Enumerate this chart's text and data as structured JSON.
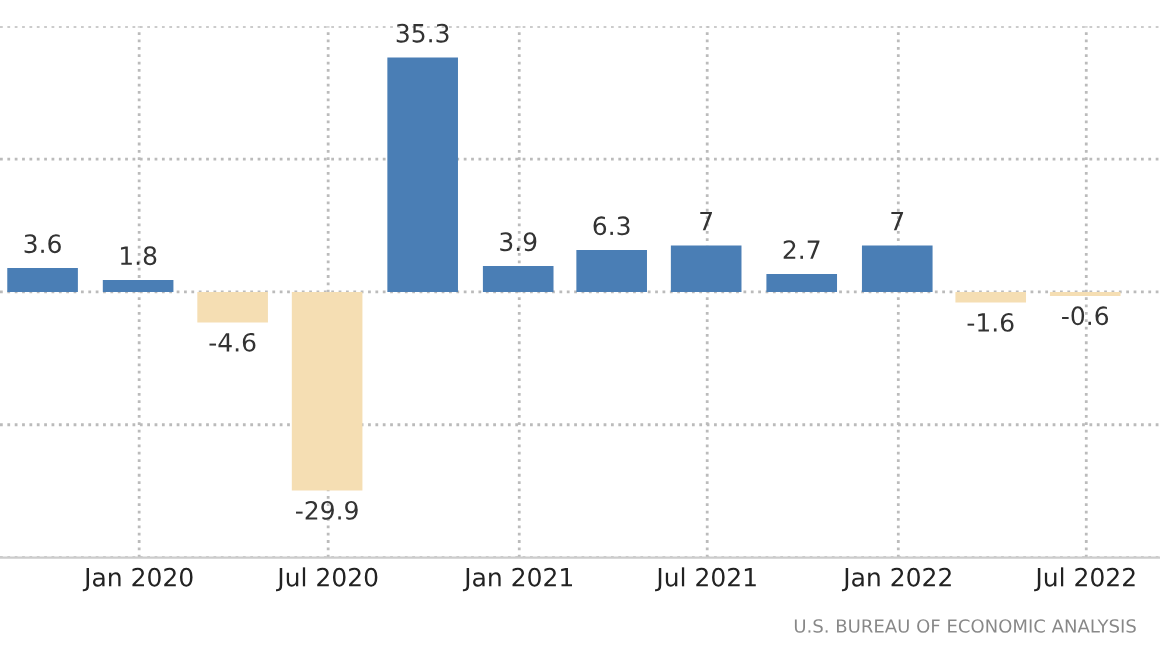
{
  "chart_data": {
    "type": "bar",
    "x": [
      "2019-09-30",
      "2019-12-31",
      "2020-03-31",
      "2020-06-30",
      "2020-09-30",
      "2020-12-31",
      "2021-03-31",
      "2021-06-30",
      "2021-09-30",
      "2021-12-31",
      "2022-03-31",
      "2022-06-30"
    ],
    "values": [
      3.6,
      1.8,
      -4.6,
      -29.9,
      35.3,
      3.9,
      6.3,
      7,
      2.7,
      7,
      -1.6,
      -0.6
    ],
    "colors": [
      "#4a7eb5",
      "#4a7eb5",
      "#f5deb3",
      "#f5deb3",
      "#4a7eb5",
      "#4a7eb5",
      "#4a7eb5",
      "#4a7eb5",
      "#4a7eb5",
      "#4a7eb5",
      "#f5deb3",
      "#f5deb3"
    ],
    "data_labels": true,
    "xlim": [
      "2019-08-20",
      "2022-09-10"
    ],
    "xticks": [
      {
        "value": "2020-01-01",
        "label": "Jan 2020"
      },
      {
        "value": "2020-07-01",
        "label": "Jul 2020"
      },
      {
        "value": "2021-01-01",
        "label": "Jan 2021"
      },
      {
        "value": "2021-07-01",
        "label": "Jul 2021"
      },
      {
        "value": "2022-01-01",
        "label": "Jan 2022"
      },
      {
        "value": "2022-07-01",
        "label": "Jul 2022"
      }
    ],
    "ylim": [
      -40,
      40
    ],
    "yticks": [
      {
        "value": -40,
        "label": null
      },
      {
        "value": -20,
        "label": null
      },
      {
        "value": 0,
        "label": null
      },
      {
        "value": 20,
        "label": null
      },
      {
        "value": 40,
        "label": null
      }
    ],
    "tick_labels": "x",
    "grid": true,
    "legend": false,
    "annotations": [
      "U.S. BUREAU OF ECONOMIC ANALYSIS"
    ]
  }
}
